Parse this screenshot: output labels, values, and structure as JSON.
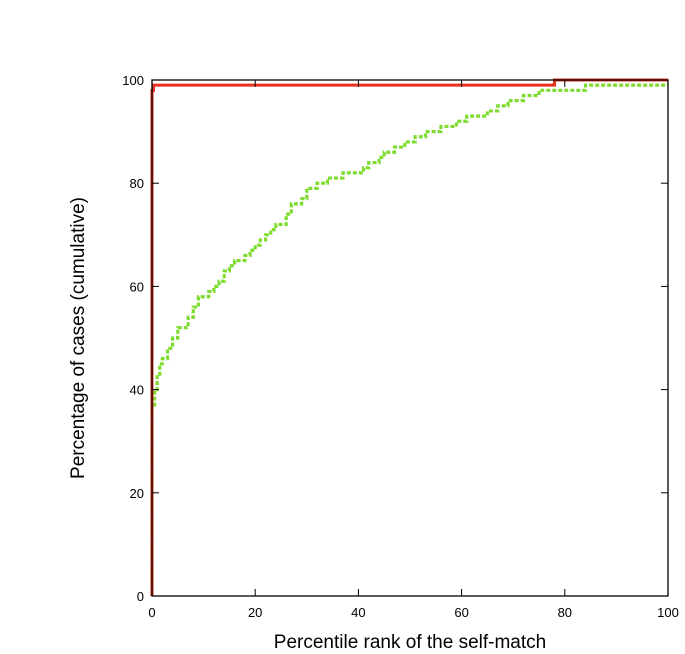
{
  "chart_data": {
    "type": "line",
    "title": "",
    "xlabel": "Percentile rank of the self-match",
    "ylabel": "Percentage of cases (cumulative)",
    "xlim": [
      0,
      100
    ],
    "ylim": [
      0,
      100
    ],
    "xticks": [
      0,
      20,
      40,
      60,
      80,
      100
    ],
    "yticks": [
      0,
      20,
      40,
      60,
      80,
      100
    ],
    "x_tick_labels": [
      "0",
      "20",
      "40",
      "60",
      "80",
      "100"
    ],
    "y_tick_labels": [
      "0",
      "20",
      "40",
      "60",
      "80",
      "100"
    ],
    "grid": false,
    "legend": "none",
    "series": [
      {
        "color": "#e8321e",
        "style": "solid-step",
        "points": [
          [
            0,
            0
          ],
          [
            0,
            98
          ],
          [
            0.3,
            98
          ],
          [
            0.3,
            99
          ],
          [
            78,
            99
          ],
          [
            78,
            100
          ],
          [
            100,
            100
          ]
        ]
      },
      {
        "color": "#7ddc2e",
        "style": "dotted-step",
        "points": [
          [
            0,
            0
          ],
          [
            0,
            37
          ],
          [
            0.5,
            37
          ],
          [
            0.5,
            40
          ],
          [
            1,
            40
          ],
          [
            1,
            43
          ],
          [
            1.5,
            43
          ],
          [
            1.5,
            45
          ],
          [
            2,
            45
          ],
          [
            2,
            46
          ],
          [
            3,
            46
          ],
          [
            3,
            48
          ],
          [
            4,
            48
          ],
          [
            4,
            50
          ],
          [
            5,
            50
          ],
          [
            5,
            52
          ],
          [
            7,
            52
          ],
          [
            7,
            54
          ],
          [
            8,
            54
          ],
          [
            8,
            56
          ],
          [
            9,
            56
          ],
          [
            9,
            58
          ],
          [
            11,
            58
          ],
          [
            11,
            59
          ],
          [
            12,
            59
          ],
          [
            12,
            60
          ],
          [
            13,
            60
          ],
          [
            13,
            61
          ],
          [
            14,
            61
          ],
          [
            14,
            63
          ],
          [
            15,
            63
          ],
          [
            15,
            64
          ],
          [
            16,
            64
          ],
          [
            16,
            65
          ],
          [
            18,
            65
          ],
          [
            18,
            66
          ],
          [
            19,
            66
          ],
          [
            19,
            67
          ],
          [
            20,
            67
          ],
          [
            20,
            68
          ],
          [
            21,
            68
          ],
          [
            21,
            69
          ],
          [
            22,
            69
          ],
          [
            22,
            70
          ],
          [
            23,
            70
          ],
          [
            23,
            71
          ],
          [
            24,
            71
          ],
          [
            24,
            72
          ],
          [
            26,
            72
          ],
          [
            26,
            74
          ],
          [
            27,
            74
          ],
          [
            27,
            76
          ],
          [
            29,
            76
          ],
          [
            29,
            77
          ],
          [
            30,
            77
          ],
          [
            30,
            79
          ],
          [
            32,
            79
          ],
          [
            32,
            80
          ],
          [
            34,
            80
          ],
          [
            34,
            81
          ],
          [
            37,
            81
          ],
          [
            37,
            82
          ],
          [
            41,
            82
          ],
          [
            41,
            83
          ],
          [
            42,
            83
          ],
          [
            42,
            84
          ],
          [
            44,
            84
          ],
          [
            44,
            85
          ],
          [
            45,
            85
          ],
          [
            45,
            86
          ],
          [
            47,
            86
          ],
          [
            47,
            87
          ],
          [
            49,
            87
          ],
          [
            49,
            88
          ],
          [
            51,
            88
          ],
          [
            51,
            89
          ],
          [
            53,
            89
          ],
          [
            53,
            90
          ],
          [
            56,
            90
          ],
          [
            56,
            91
          ],
          [
            59,
            91
          ],
          [
            59,
            92
          ],
          [
            61,
            92
          ],
          [
            61,
            93
          ],
          [
            65,
            93
          ],
          [
            65,
            94
          ],
          [
            67,
            94
          ],
          [
            67,
            95
          ],
          [
            69,
            95
          ],
          [
            69,
            96
          ],
          [
            72,
            96
          ],
          [
            72,
            97
          ],
          [
            75,
            97
          ],
          [
            75,
            98
          ],
          [
            84,
            98
          ],
          [
            84,
            99
          ],
          [
            100,
            99
          ]
        ]
      }
    ]
  }
}
